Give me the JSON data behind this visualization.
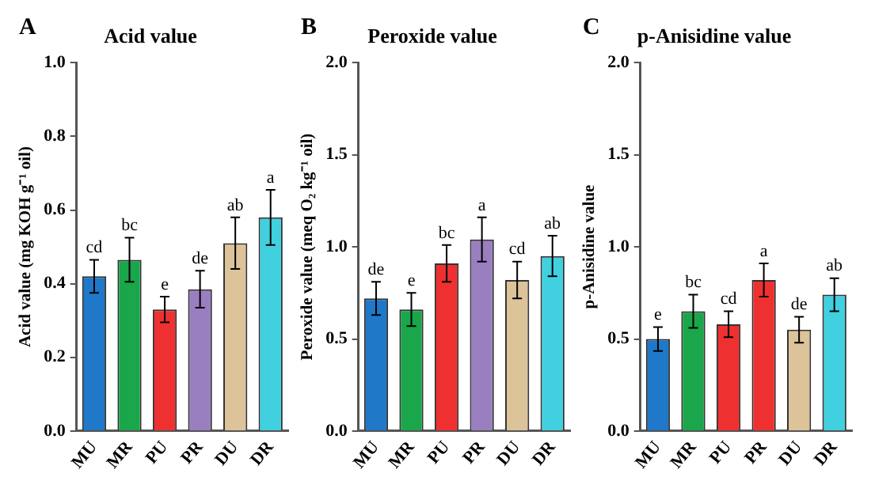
{
  "chart_data": [
    {
      "type": "bar",
      "title": "Acid value",
      "ylabel": "Acid value (mg KOH g⁻¹ oil)",
      "categories": [
        "MU",
        "MR",
        "PU",
        "PR",
        "DU",
        "DR"
      ],
      "values": [
        0.42,
        0.465,
        0.33,
        0.385,
        0.51,
        0.58
      ],
      "errors": [
        0.045,
        0.06,
        0.035,
        0.05,
        0.07,
        0.075
      ],
      "colors": [
        "#1f78c8",
        "#1aa64a",
        "#ee3030",
        "#9a7fc0",
        "#dcc39a",
        "#40d0e0"
      ],
      "ylim": [
        0,
        1
      ],
      "yticks": [
        {
          "value": 0,
          "label": "0.0"
        },
        {
          "value": 0.2,
          "label": "0.2"
        },
        {
          "value": 0.4,
          "label": "0.4"
        },
        {
          "value": 0.6,
          "label": "0.6"
        },
        {
          "value": 0.8,
          "label": "0.8"
        },
        {
          "value": 1,
          "label": "1.0"
        }
      ],
      "grid": false,
      "annotations": [
        "A",
        {
          "text": "cd",
          "x": "MU",
          "y": 0.465
        },
        {
          "text": "bc",
          "x": "MR",
          "y": 0.525
        },
        {
          "text": "e",
          "x": "PU",
          "y": 0.365
        },
        {
          "text": "de",
          "x": "PR",
          "y": 0.435
        },
        {
          "text": "ab",
          "x": "DU",
          "y": 0.58
        },
        {
          "text": "a",
          "x": "DR",
          "y": 0.655
        }
      ]
    },
    {
      "type": "bar",
      "title": "Peroxide value",
      "ylabel": "Peroxide value (meq O₂ kg⁻¹ oil)",
      "categories": [
        "MU",
        "MR",
        "PU",
        "PR",
        "DU",
        "DR"
      ],
      "values": [
        0.72,
        0.66,
        0.91,
        1.04,
        0.82,
        0.95
      ],
      "errors": [
        0.09,
        0.09,
        0.1,
        0.12,
        0.1,
        0.11
      ],
      "colors": [
        "#1f78c8",
        "#1aa64a",
        "#ee3030",
        "#9a7fc0",
        "#dcc39a",
        "#40d0e0"
      ],
      "ylim": [
        0,
        2
      ],
      "yticks": [
        {
          "value": 0,
          "label": "0.0"
        },
        {
          "value": 0.5,
          "label": "0.5"
        },
        {
          "value": 1,
          "label": "1.0"
        },
        {
          "value": 1.5,
          "label": "1.5"
        },
        {
          "value": 2,
          "label": "2.0"
        }
      ],
      "grid": false,
      "annotations": [
        "B",
        {
          "text": "de",
          "x": "MU",
          "y": 0.81
        },
        {
          "text": "e",
          "x": "MR",
          "y": 0.75
        },
        {
          "text": "bc",
          "x": "PU",
          "y": 1.01
        },
        {
          "text": "a",
          "x": "PR",
          "y": 1.16
        },
        {
          "text": "cd",
          "x": "DU",
          "y": 0.92
        },
        {
          "text": "ab",
          "x": "DR",
          "y": 1.06
        }
      ]
    },
    {
      "type": "bar",
      "title": "p-Anisidine value",
      "ylabel": "p-Anisidine value",
      "categories": [
        "MU",
        "MR",
        "PU",
        "PR",
        "DU",
        "DR"
      ],
      "values": [
        0.5,
        0.65,
        0.58,
        0.82,
        0.55,
        0.74
      ],
      "errors": [
        0.065,
        0.09,
        0.07,
        0.09,
        0.07,
        0.09
      ],
      "colors": [
        "#1f78c8",
        "#1aa64a",
        "#ee3030",
        "#ee3030",
        "#dcc39a",
        "#40d0e0"
      ],
      "ylim": [
        0,
        2
      ],
      "yticks": [
        {
          "value": 0,
          "label": "0.0"
        },
        {
          "value": 0.5,
          "label": "0.5"
        },
        {
          "value": 1,
          "label": "1.0"
        },
        {
          "value": 1.5,
          "label": "1.5"
        },
        {
          "value": 2,
          "label": "2.0"
        }
      ],
      "grid": false,
      "annotations": [
        "C",
        {
          "text": "e",
          "x": "MU",
          "y": 0.565
        },
        {
          "text": "bc",
          "x": "MR",
          "y": 0.74
        },
        {
          "text": "cd",
          "x": "PU",
          "y": 0.65
        },
        {
          "text": "a",
          "x": "PR",
          "y": 0.91
        },
        {
          "text": "de",
          "x": "DU",
          "y": 0.62
        },
        {
          "text": "ab",
          "x": "DR",
          "y": 0.83
        }
      ]
    }
  ]
}
